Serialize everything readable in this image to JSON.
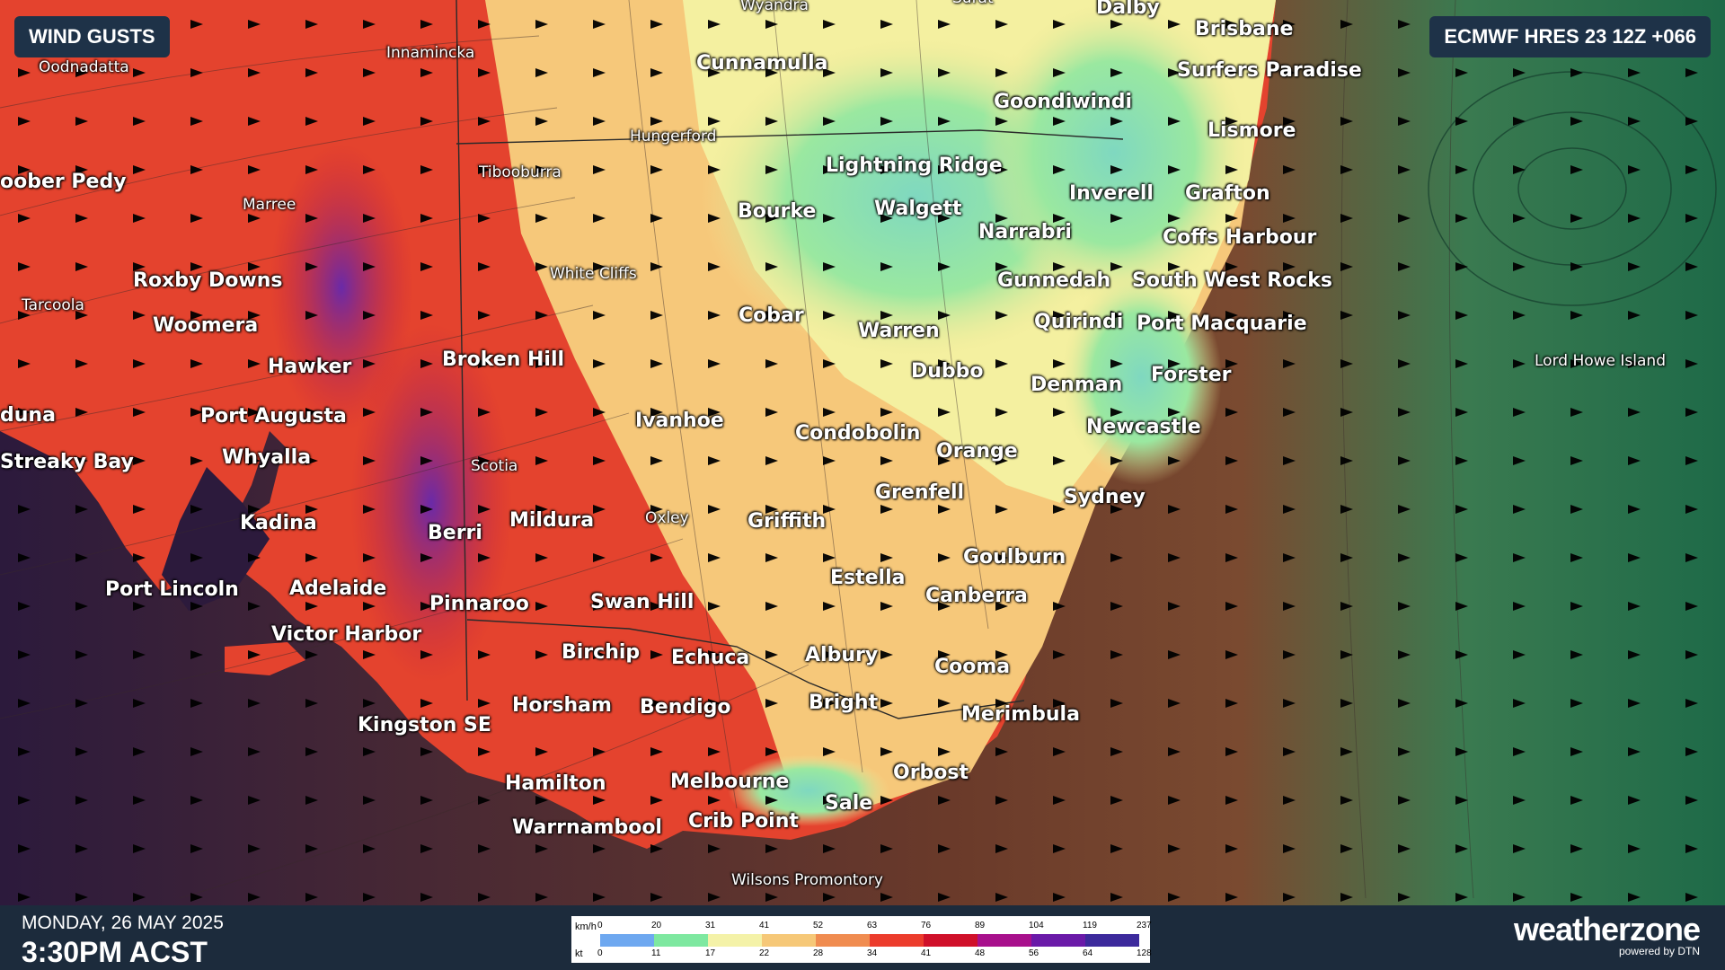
{
  "header": {
    "product_label": "WIND GUSTS",
    "model_run": "ECMWF HRES 23 12Z +066"
  },
  "footer": {
    "date": "MONDAY, 26 MAY 2025",
    "time": "3:30PM ACST",
    "logo": "weatherzone",
    "logo_sub": "powered by DTN"
  },
  "legend": {
    "unit_kmh": "km/h",
    "unit_kt": "kt",
    "kmh_ticks": [
      "0",
      "20",
      "31",
      "41",
      "52",
      "63",
      "76",
      "89",
      "104",
      "119",
      "237"
    ],
    "kt_ticks": [
      "0",
      "11",
      "17",
      "22",
      "28",
      "34",
      "41",
      "48",
      "56",
      "64",
      "128"
    ],
    "colors": [
      "#6ea8f0",
      "#7ee8a0",
      "#f4f2a8",
      "#f6c878",
      "#f08c50",
      "#ec3c2c",
      "#d0102a",
      "#a8108c",
      "#6a1aa8",
      "#3c2a9c"
    ]
  },
  "map": {
    "colors": {
      "ocean_west": "#2c1a3c",
      "ocean_east": "#1e6a48",
      "land_hot": "#e03c2c",
      "land_cool": "#8ce6a8"
    },
    "places_major": [
      {
        "name": "Brisbane"
      },
      {
        "name": "Surfers Paradise"
      },
      {
        "name": "Lismore"
      },
      {
        "name": "Goondiwindi"
      },
      {
        "name": "Cunnamulla"
      },
      {
        "name": "Dalby"
      },
      {
        "name": "Lightning Ridge"
      },
      {
        "name": "Walgett"
      },
      {
        "name": "Bourke"
      },
      {
        "name": "Inverell"
      },
      {
        "name": "Grafton"
      },
      {
        "name": "Narrabri"
      },
      {
        "name": "Coffs Harbour"
      },
      {
        "name": "Gunnedah"
      },
      {
        "name": "South West Rocks"
      },
      {
        "name": "Quirindi"
      },
      {
        "name": "Port Macquarie"
      },
      {
        "name": "Cobar"
      },
      {
        "name": "Warren"
      },
      {
        "name": "Dubbo"
      },
      {
        "name": "Denman"
      },
      {
        "name": "Forster"
      },
      {
        "name": "Newcastle"
      },
      {
        "name": "Ivanhoe"
      },
      {
        "name": "Condobolin"
      },
      {
        "name": "Orange"
      },
      {
        "name": "Sydney"
      },
      {
        "name": "Grenfell"
      },
      {
        "name": "Griffith"
      },
      {
        "name": "Goulburn"
      },
      {
        "name": "Canberra"
      },
      {
        "name": "Estella"
      },
      {
        "name": "Mildura"
      },
      {
        "name": "Berri"
      },
      {
        "name": "Swan Hill"
      },
      {
        "name": "Pinnaroo"
      },
      {
        "name": "Birchip"
      },
      {
        "name": "Echuca"
      },
      {
        "name": "Albury"
      },
      {
        "name": "Cooma"
      },
      {
        "name": "Bright"
      },
      {
        "name": "Merimbula"
      },
      {
        "name": "Horsham"
      },
      {
        "name": "Bendigo"
      },
      {
        "name": "Orbost"
      },
      {
        "name": "Hamilton"
      },
      {
        "name": "Melbourne"
      },
      {
        "name": "Sale"
      },
      {
        "name": "Warrnambool"
      },
      {
        "name": "Crib Point"
      },
      {
        "name": "Kingston SE"
      },
      {
        "name": "Victor Harbor"
      },
      {
        "name": "Adelaide"
      },
      {
        "name": "Port Lincoln"
      },
      {
        "name": "Kadina"
      },
      {
        "name": "Whyalla"
      },
      {
        "name": "Port Augusta"
      },
      {
        "name": "Hawker"
      },
      {
        "name": "Woomera"
      },
      {
        "name": "Roxby Downs"
      },
      {
        "name": "Broken Hill"
      },
      {
        "name": "oober Pedy"
      },
      {
        "name": "Streaky Bay"
      },
      {
        "name": "duna"
      }
    ],
    "places_minor": [
      {
        "name": "Oodnadatta"
      },
      {
        "name": "Innamincka"
      },
      {
        "name": "Wyandra"
      },
      {
        "name": "Hungerford"
      },
      {
        "name": "Tibooburra"
      },
      {
        "name": "Marree"
      },
      {
        "name": "White Cliffs"
      },
      {
        "name": "Tarcoola"
      },
      {
        "name": "Scotia"
      },
      {
        "name": "Oxley"
      },
      {
        "name": "Wilsons Promontory"
      },
      {
        "name": "Lord Howe Island"
      },
      {
        "name": "Surat"
      }
    ]
  }
}
